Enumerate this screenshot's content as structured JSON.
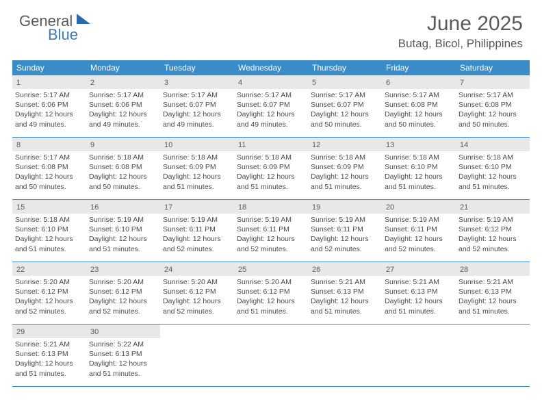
{
  "logo": {
    "line1": "General",
    "line2": "Blue"
  },
  "title": "June 2025",
  "location": "Butag, Bicol, Philippines",
  "colors": {
    "header_bg": "#3a8cc8",
    "border": "#3a8cc8",
    "daynum_bg": "#e8e8e8",
    "text": "#5a5a5a",
    "info": "#4a4a4a",
    "white": "#ffffff",
    "logo_blue": "#3a7cb8",
    "tri": "#2a6aa8"
  },
  "fonts": {
    "title_size": 30,
    "location_size": 17,
    "dayhdr_size": 12,
    "daynum_size": 11,
    "info_size": 10.5
  },
  "day_headers": [
    "Sunday",
    "Monday",
    "Tuesday",
    "Wednesday",
    "Thursday",
    "Friday",
    "Saturday"
  ],
  "weeks": [
    [
      {
        "n": "1",
        "sr": "Sunrise: 5:17 AM",
        "ss": "Sunset: 6:06 PM",
        "d1": "Daylight: 12 hours",
        "d2": "and 49 minutes."
      },
      {
        "n": "2",
        "sr": "Sunrise: 5:17 AM",
        "ss": "Sunset: 6:06 PM",
        "d1": "Daylight: 12 hours",
        "d2": "and 49 minutes."
      },
      {
        "n": "3",
        "sr": "Sunrise: 5:17 AM",
        "ss": "Sunset: 6:07 PM",
        "d1": "Daylight: 12 hours",
        "d2": "and 49 minutes."
      },
      {
        "n": "4",
        "sr": "Sunrise: 5:17 AM",
        "ss": "Sunset: 6:07 PM",
        "d1": "Daylight: 12 hours",
        "d2": "and 49 minutes."
      },
      {
        "n": "5",
        "sr": "Sunrise: 5:17 AM",
        "ss": "Sunset: 6:07 PM",
        "d1": "Daylight: 12 hours",
        "d2": "and 50 minutes."
      },
      {
        "n": "6",
        "sr": "Sunrise: 5:17 AM",
        "ss": "Sunset: 6:08 PM",
        "d1": "Daylight: 12 hours",
        "d2": "and 50 minutes."
      },
      {
        "n": "7",
        "sr": "Sunrise: 5:17 AM",
        "ss": "Sunset: 6:08 PM",
        "d1": "Daylight: 12 hours",
        "d2": "and 50 minutes."
      }
    ],
    [
      {
        "n": "8",
        "sr": "Sunrise: 5:17 AM",
        "ss": "Sunset: 6:08 PM",
        "d1": "Daylight: 12 hours",
        "d2": "and 50 minutes."
      },
      {
        "n": "9",
        "sr": "Sunrise: 5:18 AM",
        "ss": "Sunset: 6:08 PM",
        "d1": "Daylight: 12 hours",
        "d2": "and 50 minutes."
      },
      {
        "n": "10",
        "sr": "Sunrise: 5:18 AM",
        "ss": "Sunset: 6:09 PM",
        "d1": "Daylight: 12 hours",
        "d2": "and 51 minutes."
      },
      {
        "n": "11",
        "sr": "Sunrise: 5:18 AM",
        "ss": "Sunset: 6:09 PM",
        "d1": "Daylight: 12 hours",
        "d2": "and 51 minutes."
      },
      {
        "n": "12",
        "sr": "Sunrise: 5:18 AM",
        "ss": "Sunset: 6:09 PM",
        "d1": "Daylight: 12 hours",
        "d2": "and 51 minutes."
      },
      {
        "n": "13",
        "sr": "Sunrise: 5:18 AM",
        "ss": "Sunset: 6:10 PM",
        "d1": "Daylight: 12 hours",
        "d2": "and 51 minutes."
      },
      {
        "n": "14",
        "sr": "Sunrise: 5:18 AM",
        "ss": "Sunset: 6:10 PM",
        "d1": "Daylight: 12 hours",
        "d2": "and 51 minutes."
      }
    ],
    [
      {
        "n": "15",
        "sr": "Sunrise: 5:18 AM",
        "ss": "Sunset: 6:10 PM",
        "d1": "Daylight: 12 hours",
        "d2": "and 51 minutes."
      },
      {
        "n": "16",
        "sr": "Sunrise: 5:19 AM",
        "ss": "Sunset: 6:10 PM",
        "d1": "Daylight: 12 hours",
        "d2": "and 51 minutes."
      },
      {
        "n": "17",
        "sr": "Sunrise: 5:19 AM",
        "ss": "Sunset: 6:11 PM",
        "d1": "Daylight: 12 hours",
        "d2": "and 52 minutes."
      },
      {
        "n": "18",
        "sr": "Sunrise: 5:19 AM",
        "ss": "Sunset: 6:11 PM",
        "d1": "Daylight: 12 hours",
        "d2": "and 52 minutes."
      },
      {
        "n": "19",
        "sr": "Sunrise: 5:19 AM",
        "ss": "Sunset: 6:11 PM",
        "d1": "Daylight: 12 hours",
        "d2": "and 52 minutes."
      },
      {
        "n": "20",
        "sr": "Sunrise: 5:19 AM",
        "ss": "Sunset: 6:11 PM",
        "d1": "Daylight: 12 hours",
        "d2": "and 52 minutes."
      },
      {
        "n": "21",
        "sr": "Sunrise: 5:19 AM",
        "ss": "Sunset: 6:12 PM",
        "d1": "Daylight: 12 hours",
        "d2": "and 52 minutes."
      }
    ],
    [
      {
        "n": "22",
        "sr": "Sunrise: 5:20 AM",
        "ss": "Sunset: 6:12 PM",
        "d1": "Daylight: 12 hours",
        "d2": "and 52 minutes."
      },
      {
        "n": "23",
        "sr": "Sunrise: 5:20 AM",
        "ss": "Sunset: 6:12 PM",
        "d1": "Daylight: 12 hours",
        "d2": "and 52 minutes."
      },
      {
        "n": "24",
        "sr": "Sunrise: 5:20 AM",
        "ss": "Sunset: 6:12 PM",
        "d1": "Daylight: 12 hours",
        "d2": "and 52 minutes."
      },
      {
        "n": "25",
        "sr": "Sunrise: 5:20 AM",
        "ss": "Sunset: 6:12 PM",
        "d1": "Daylight: 12 hours",
        "d2": "and 51 minutes."
      },
      {
        "n": "26",
        "sr": "Sunrise: 5:21 AM",
        "ss": "Sunset: 6:13 PM",
        "d1": "Daylight: 12 hours",
        "d2": "and 51 minutes."
      },
      {
        "n": "27",
        "sr": "Sunrise: 5:21 AM",
        "ss": "Sunset: 6:13 PM",
        "d1": "Daylight: 12 hours",
        "d2": "and 51 minutes."
      },
      {
        "n": "28",
        "sr": "Sunrise: 5:21 AM",
        "ss": "Sunset: 6:13 PM",
        "d1": "Daylight: 12 hours",
        "d2": "and 51 minutes."
      }
    ],
    [
      {
        "n": "29",
        "sr": "Sunrise: 5:21 AM",
        "ss": "Sunset: 6:13 PM",
        "d1": "Daylight: 12 hours",
        "d2": "and 51 minutes."
      },
      {
        "n": "30",
        "sr": "Sunrise: 5:22 AM",
        "ss": "Sunset: 6:13 PM",
        "d1": "Daylight: 12 hours",
        "d2": "and 51 minutes."
      },
      {
        "empty": true
      },
      {
        "empty": true
      },
      {
        "empty": true
      },
      {
        "empty": true
      },
      {
        "empty": true
      }
    ]
  ]
}
